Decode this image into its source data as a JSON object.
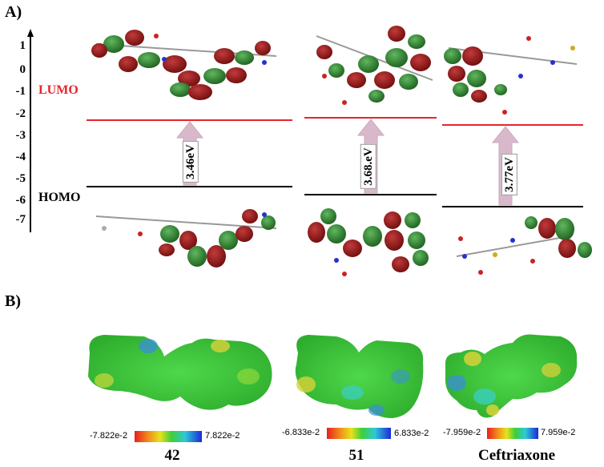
{
  "panel_a": {
    "label": "A)",
    "y_ticks": [
      "1",
      "0",
      "-1",
      "-2",
      "-3",
      "-4",
      "-5",
      "-6",
      "-7"
    ],
    "lumo_label": "LUMO",
    "homo_label": "HOMO",
    "lumo_color": "#e8242b",
    "homo_color": "#000000",
    "arrow_color": "#d9b8cc",
    "gaps": [
      "3.46eV",
      "3.68.eV",
      "3.77eV"
    ]
  },
  "panel_b": {
    "label": "B)",
    "molecules": [
      {
        "caption": "42",
        "scale_min": "-7.822e-2",
        "scale_max": "7.822e-2"
      },
      {
        "caption": "51",
        "scale_min": "-6.833e-2",
        "scale_max": "6.833e-2"
      },
      {
        "caption": "Ceftriaxone",
        "scale_min": "-7.959e-2",
        "scale_max": "7.959e-2"
      }
    ]
  },
  "colors": {
    "orbital_red": "#8b1414",
    "orbital_green": "#2f8a2f",
    "esp_green": "#3ccf3a",
    "esp_yellow": "#d8d23a",
    "esp_blue": "#3a8fd8"
  }
}
